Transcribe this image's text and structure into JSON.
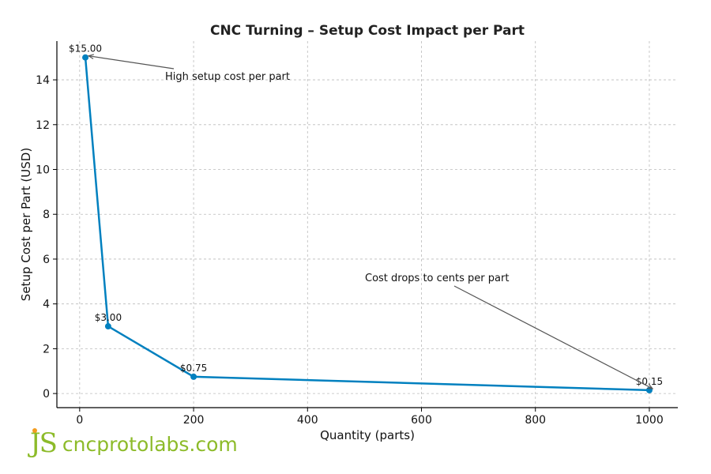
{
  "chart_data": {
    "type": "line",
    "title": "CNC Turning – Setup Cost Impact per Part",
    "xlabel": "Quantity (parts)",
    "ylabel": "Setup Cost per Part (USD)",
    "x": [
      10,
      50,
      200,
      1000
    ],
    "values": [
      15.0,
      3.0,
      0.75,
      0.15
    ],
    "point_labels": [
      "$15.00",
      "$3.00",
      "$0.75",
      "$0.15"
    ],
    "xlim": [
      -40,
      1050
    ],
    "ylim": [
      -0.63,
      15.73
    ],
    "xticks": [
      0,
      200,
      400,
      600,
      800,
      1000
    ],
    "yticks": [
      0,
      2,
      4,
      6,
      8,
      10,
      12,
      14
    ],
    "grid": true,
    "line_color": "#0080bf",
    "annotations": [
      {
        "text": "High setup cost per part",
        "target_x": 10,
        "target_y": 15.0
      },
      {
        "text": "Cost drops to cents per part",
        "target_x": 1000,
        "target_y": 0.15
      }
    ]
  },
  "watermark": {
    "logo_text": "JS",
    "site": "cncprotolabs.com",
    "color": "#8dbb2a"
  }
}
